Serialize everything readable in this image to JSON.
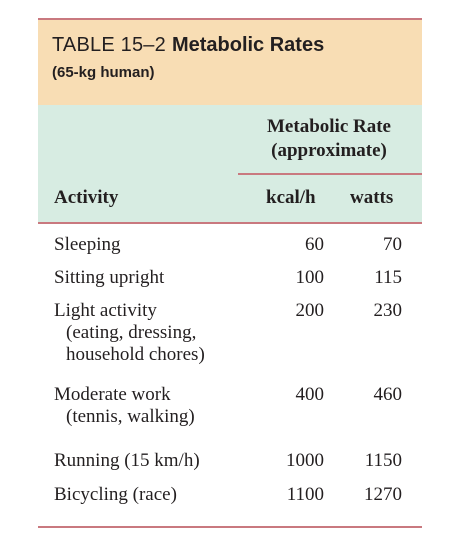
{
  "table": {
    "number": "TABLE 15–2",
    "name": "Metabolic Rates",
    "subtitle": "(65-kg human)",
    "group_header_line1": "Metabolic Rate",
    "group_header_line2": "(approximate)",
    "col_activity": "Activity",
    "col_kcal": "kcal/h",
    "col_watts": "watts",
    "rows": [
      {
        "activity": "Sleeping",
        "detail1": "",
        "detail2": "",
        "kcal": "60",
        "watts": "70"
      },
      {
        "activity": "Sitting upright",
        "detail1": "",
        "detail2": "",
        "kcal": "100",
        "watts": "115"
      },
      {
        "activity": "Light activity",
        "detail1": "(eating, dressing,",
        "detail2": "household chores)",
        "kcal": "200",
        "watts": "230"
      },
      {
        "activity": "Moderate work",
        "detail1": "(tennis, walking)",
        "detail2": "",
        "kcal": "400",
        "watts": "460"
      },
      {
        "activity": "Running (15 km/h)",
        "detail1": "",
        "detail2": "",
        "kcal": "1000",
        "watts": "1150"
      },
      {
        "activity": "Bicycling (race)",
        "detail1": "",
        "detail2": "",
        "kcal": "1100",
        "watts": "1270"
      }
    ]
  },
  "colors": {
    "rule": "#c9797f",
    "title_band": "#f8ddb4",
    "header_band": "#d7ece2",
    "text": "#231f20"
  }
}
